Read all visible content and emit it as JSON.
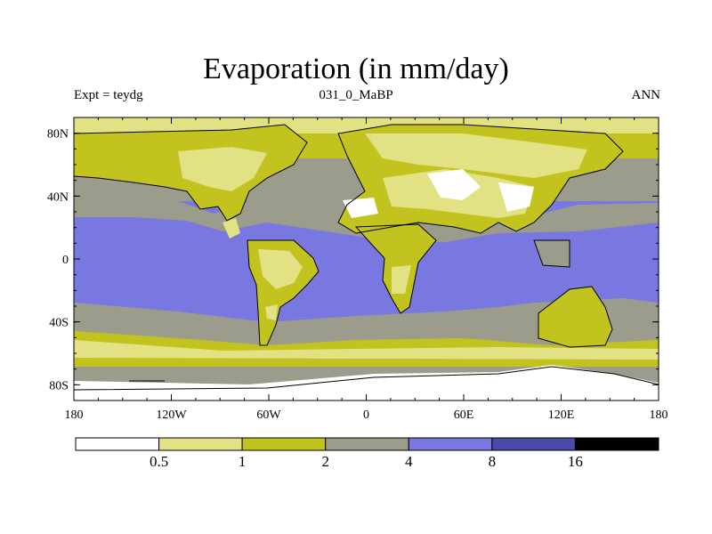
{
  "title": "Evaporation (in mm/day)",
  "subtitle_left": "Expt = teydg",
  "subtitle_center": "031_0_MaBP",
  "subtitle_right": "ANN",
  "map": {
    "lon_range": [
      -180,
      180
    ],
    "lat_range": [
      -90,
      90
    ],
    "y_ticks": [
      {
        "lat": 80,
        "label": "80N"
      },
      {
        "lat": 40,
        "label": "40N"
      },
      {
        "lat": 0,
        "label": "0"
      },
      {
        "lat": -40,
        "label": "40S"
      },
      {
        "lat": -80,
        "label": "80S"
      }
    ],
    "x_ticks": [
      {
        "lon": -180,
        "label": "180"
      },
      {
        "lon": -120,
        "label": "120W"
      },
      {
        "lon": -60,
        "label": "60W"
      },
      {
        "lon": 0,
        "label": "0"
      },
      {
        "lon": 60,
        "label": "60E"
      },
      {
        "lon": 120,
        "label": "120E"
      },
      {
        "lon": 180,
        "label": "180"
      }
    ]
  },
  "colorbar": {
    "levels": [
      "0.5",
      "1",
      "2",
      "4",
      "8",
      "16"
    ],
    "colors": [
      "#ffffff",
      "#e2e285",
      "#c3c31f",
      "#9c9c8c",
      "#7878e0",
      "#4a4aa8",
      "#000000"
    ]
  }
}
